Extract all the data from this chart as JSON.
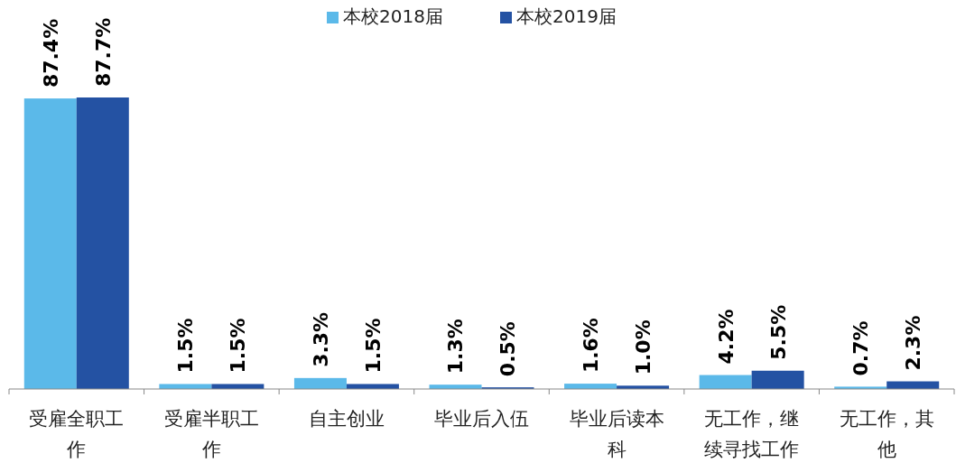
{
  "chart_data": {
    "type": "bar",
    "categories": [
      "受雇全职工作",
      "受雇半职工作",
      "自主创业",
      "毕业后入伍",
      "毕业后读本科",
      "无工作，继续寻找工作",
      "无工作，其他"
    ],
    "series": [
      {
        "name": "本校2018届",
        "color": "#5bb9e9",
        "values": [
          87.4,
          1.5,
          3.3,
          1.3,
          1.6,
          4.2,
          0.7
        ],
        "value_labels": [
          "87.4%",
          "1.5%",
          "3.3%",
          "1.3%",
          "1.6%",
          "4.2%",
          "0.7%"
        ]
      },
      {
        "name": "本校2019届",
        "color": "#2452a3",
        "values": [
          87.7,
          1.5,
          1.5,
          0.5,
          1.0,
          5.5,
          2.3
        ],
        "value_labels": [
          "87.7%",
          "1.5%",
          "1.5%",
          "0.5%",
          "1.0%",
          "5.5%",
          "2.3%"
        ]
      }
    ],
    "legend": "top"
  }
}
